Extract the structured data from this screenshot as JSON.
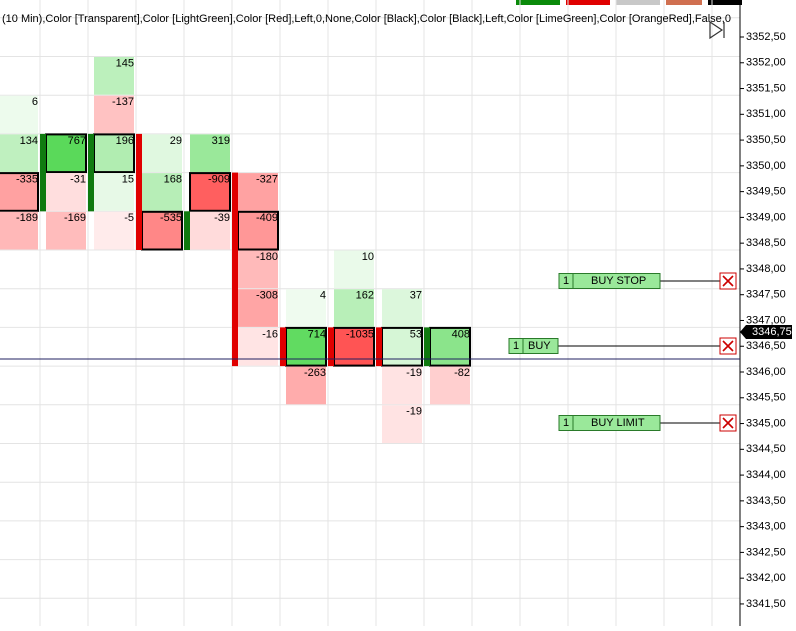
{
  "header": {
    "indicator_text": "(10 Min),Color [Transparent],Color [LightGreen],Color [Red],Left,0,None,Color [Black],Color [Black],Left,Color [LimeGreen],Color [OrangeRed],False,0"
  },
  "price_axis": {
    "labels": [
      "3352,50",
      "3352,00",
      "3351,50",
      "3351,00",
      "3350,50",
      "3350,00",
      "3349,50",
      "3349,00",
      "3348,50",
      "3348,00",
      "3347,50",
      "3347,00",
      "3346,50",
      "3346,00",
      "3345,50",
      "3345,00",
      "3344,50",
      "3344,00",
      "3343,50",
      "3343,00",
      "3342,50",
      "3342,00",
      "3341,50"
    ],
    "current_price": "3346,75"
  },
  "columns": [
    {
      "cells": [
        null,
        6,
        134,
        -335,
        -189,
        null,
        null,
        null,
        null,
        null
      ],
      "outlined": 3,
      "candle": null
    },
    {
      "cells": [
        null,
        null,
        767,
        -31,
        -169,
        null,
        null,
        null,
        null,
        null
      ],
      "outlined": 2,
      "candle": {
        "color": "green",
        "span": [
          2,
          3
        ]
      }
    },
    {
      "cells": [
        145,
        -137,
        196,
        15,
        -5,
        null,
        null,
        null,
        null,
        null
      ],
      "outlined": 2,
      "candle": {
        "color": "green",
        "span": [
          2,
          3
        ]
      }
    },
    {
      "cells": [
        null,
        null,
        29,
        168,
        -535,
        null,
        null,
        null,
        null,
        null
      ],
      "outlined": 4,
      "candle": {
        "color": "red",
        "span": [
          2,
          4
        ]
      }
    },
    {
      "cells": [
        null,
        null,
        319,
        -909,
        -39,
        null,
        null,
        null,
        null,
        null
      ],
      "outlined": 3,
      "candle": {
        "color": "green",
        "span": [
          4,
          4
        ]
      }
    },
    {
      "cells": [
        null,
        null,
        null,
        -327,
        -409,
        -180,
        -308,
        -16,
        null,
        null
      ],
      "outlined": 4,
      "candle": {
        "color": "red",
        "span": [
          3,
          7
        ]
      }
    },
    {
      "cells": [
        null,
        null,
        null,
        null,
        null,
        null,
        4,
        714,
        -263,
        null
      ],
      "outlined": 7,
      "candle": {
        "color": "red",
        "span": [
          7,
          7
        ]
      }
    },
    {
      "cells": [
        null,
        null,
        null,
        null,
        null,
        10,
        162,
        -1035,
        null,
        null
      ],
      "outlined": 7,
      "candle": {
        "color": "red",
        "span": [
          7,
          7
        ]
      }
    },
    {
      "cells": [
        null,
        null,
        null,
        null,
        null,
        null,
        37,
        53,
        -19,
        -19
      ],
      "outlined": 7,
      "candle": {
        "color": "red",
        "span": [
          7,
          7
        ]
      }
    },
    {
      "cells": [
        null,
        null,
        null,
        null,
        null,
        null,
        null,
        408,
        -82,
        null
      ],
      "outlined": 7,
      "candle": {
        "color": "green",
        "span": [
          7,
          7
        ]
      }
    }
  ],
  "orders": [
    {
      "quantity": "1",
      "label": "BUY STOP"
    },
    {
      "quantity": "1",
      "label": "BUY"
    },
    {
      "quantity": "1",
      "label": "BUY LIMIT"
    }
  ]
}
